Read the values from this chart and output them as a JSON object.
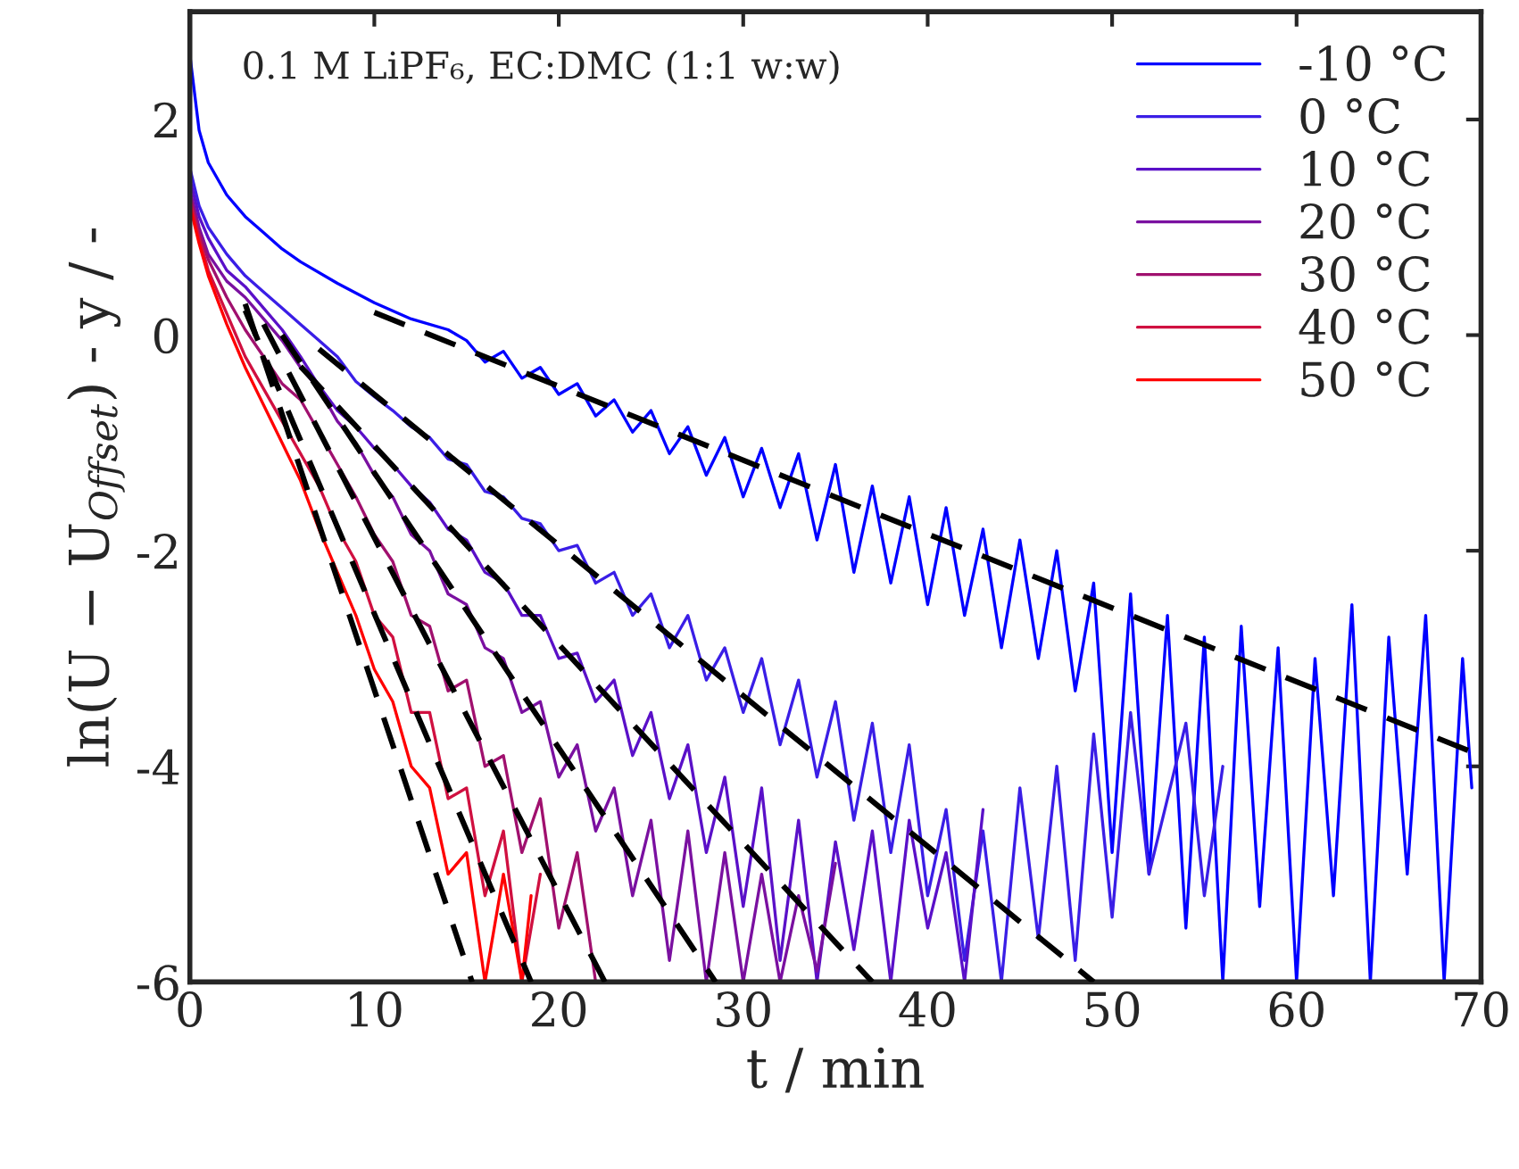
{
  "chart_data": {
    "type": "line",
    "xlabel": "t / min",
    "ylabel": "ln(U − U$_{Offset}$) - y / -",
    "annotations": [
      "0.1 M LiPF₆, EC:DMC (1:1 w:w)"
    ],
    "xlim": [
      0,
      70
    ],
    "ylim": [
      -6,
      3
    ],
    "xticks": [
      0,
      10,
      20,
      30,
      40,
      50,
      60,
      70
    ],
    "yticks": [
      -6,
      -4,
      -2,
      0,
      2
    ],
    "grid": false,
    "legend": "top right",
    "marker": "none",
    "line_style": "solid",
    "series": [
      {
        "name": "-10 °C",
        "color": "#0000ff",
        "x": [
          0,
          0.5,
          1,
          2,
          3,
          4,
          5,
          6,
          8,
          10,
          12,
          14,
          15,
          16,
          17,
          18,
          19,
          20,
          21,
          22,
          23,
          24,
          25,
          26,
          27,
          28,
          29,
          30,
          31,
          32,
          33,
          34,
          35,
          36,
          37,
          38,
          39,
          40,
          41,
          42,
          43,
          44,
          45,
          46,
          47,
          48,
          49,
          50,
          51,
          52,
          53,
          54,
          55,
          56,
          57,
          58,
          59,
          60,
          61,
          62,
          63,
          64,
          65,
          66,
          67,
          68,
          69,
          69.5
        ],
        "values": [
          2.6,
          1.9,
          1.6,
          1.3,
          1.1,
          0.95,
          0.8,
          0.68,
          0.48,
          0.3,
          0.15,
          0.05,
          -0.05,
          -0.25,
          -0.15,
          -0.4,
          -0.3,
          -0.55,
          -0.45,
          -0.75,
          -0.6,
          -0.9,
          -0.7,
          -1.1,
          -0.85,
          -1.3,
          -0.95,
          -1.5,
          -1.05,
          -1.6,
          -1.1,
          -1.9,
          -1.2,
          -2.2,
          -1.4,
          -2.3,
          -1.5,
          -2.5,
          -1.6,
          -2.6,
          -1.8,
          -2.9,
          -1.9,
          -3.0,
          -2.0,
          -3.3,
          -2.3,
          -4.8,
          -2.4,
          -5.0,
          -2.6,
          -5.5,
          -2.8,
          -6,
          -2.7,
          -5.3,
          -2.9,
          -6,
          -3.0,
          -5.2,
          -2.5,
          -6,
          -2.8,
          -5.0,
          -2.6,
          -6,
          -3.0,
          -4.2
        ]
      },
      {
        "name": "0 °C",
        "color": "#3a1ee6",
        "x": [
          0,
          0.5,
          1,
          2,
          3,
          4,
          5,
          6,
          7,
          8,
          9,
          10,
          11,
          12,
          13,
          14,
          15,
          16,
          17,
          18,
          19,
          20,
          21,
          22,
          23,
          24,
          25,
          26,
          27,
          28,
          29,
          30,
          31,
          32,
          33,
          34,
          35,
          36,
          37,
          38,
          39,
          40,
          41,
          42,
          43,
          44,
          45,
          46,
          47,
          48,
          49,
          50,
          51,
          52,
          53,
          54,
          55,
          56
        ],
        "values": [
          1.55,
          1.2,
          1.0,
          0.75,
          0.55,
          0.4,
          0.25,
          0.1,
          -0.05,
          -0.2,
          -0.43,
          -0.57,
          -0.7,
          -0.85,
          -0.95,
          -1.15,
          -1.2,
          -1.45,
          -1.5,
          -1.7,
          -1.75,
          -2.0,
          -1.95,
          -2.3,
          -2.2,
          -2.6,
          -2.4,
          -2.9,
          -2.6,
          -3.2,
          -2.9,
          -3.5,
          -3.0,
          -3.8,
          -3.2,
          -4.1,
          -3.4,
          -4.5,
          -3.6,
          -4.8,
          -3.8,
          -5.2,
          -4.4,
          -5.8,
          -4.6,
          -6,
          -4.2,
          -5.6,
          -4.0,
          -5.8,
          -3.7,
          -5.4,
          -3.5,
          -5.0,
          -4.3,
          -3.6,
          -5.2,
          -4.0
        ]
      },
      {
        "name": "10 °C",
        "color": "#5a10c8",
        "x": [
          0,
          0.5,
          1,
          2,
          3,
          4,
          5,
          6,
          7,
          8,
          9,
          10,
          11,
          12,
          13,
          14,
          15,
          16,
          17,
          18,
          19,
          20,
          21,
          22,
          23,
          24,
          25,
          26,
          27,
          28,
          29,
          30,
          31,
          32,
          33,
          34,
          35,
          36,
          37,
          38,
          39,
          40,
          41,
          42,
          43
        ],
        "values": [
          1.45,
          1.1,
          0.9,
          0.6,
          0.45,
          0.25,
          0.05,
          -0.2,
          -0.47,
          -0.7,
          -0.85,
          -1.05,
          -1.2,
          -1.4,
          -1.55,
          -1.8,
          -1.9,
          -2.2,
          -2.3,
          -2.6,
          -2.6,
          -3.0,
          -2.95,
          -3.4,
          -3.2,
          -3.9,
          -3.5,
          -4.3,
          -3.8,
          -4.8,
          -4.1,
          -5.3,
          -4.2,
          -5.8,
          -4.5,
          -6,
          -4.7,
          -5.7,
          -4.6,
          -6,
          -4.5,
          -5.5,
          -4.8,
          -6,
          -4.4
        ]
      },
      {
        "name": "20 °C",
        "color": "#7a10a0",
        "x": [
          0,
          0.5,
          1,
          2,
          3,
          4,
          5,
          6,
          7,
          8,
          9,
          10,
          11,
          12,
          13,
          14,
          15,
          16,
          17,
          18,
          19,
          20,
          21,
          22,
          23,
          24,
          25,
          26,
          27,
          28,
          29,
          30,
          31,
          32,
          33,
          34,
          35
        ],
        "values": [
          1.35,
          1.0,
          0.75,
          0.5,
          0.35,
          0.15,
          -0.05,
          -0.3,
          -0.5,
          -0.8,
          -1.0,
          -1.3,
          -1.5,
          -1.85,
          -2.0,
          -2.4,
          -2.5,
          -2.9,
          -3.0,
          -3.5,
          -3.4,
          -4.1,
          -3.8,
          -4.6,
          -4.2,
          -5.2,
          -4.5,
          -5.8,
          -4.6,
          -6,
          -4.8,
          -6,
          -5.0,
          -6,
          -5.2,
          -5.9,
          -4.9
        ]
      },
      {
        "name": "30 °C",
        "color": "#a0106e",
        "x": [
          0,
          0.5,
          1,
          2,
          3,
          4,
          5,
          6,
          7,
          8,
          9,
          10,
          11,
          12,
          13,
          14,
          15,
          16,
          17,
          18,
          19,
          20,
          21,
          22
        ],
        "values": [
          1.3,
          0.95,
          0.7,
          0.35,
          0.05,
          -0.2,
          -0.45,
          -0.6,
          -0.9,
          -1.2,
          -1.5,
          -1.85,
          -2.1,
          -2.6,
          -2.7,
          -3.3,
          -3.2,
          -4.0,
          -3.9,
          -4.8,
          -4.3,
          -5.5,
          -4.8,
          -6
        ]
      },
      {
        "name": "40 °C",
        "color": "#d01040",
        "x": [
          0,
          0.5,
          1,
          2,
          3,
          4,
          5,
          6,
          7,
          8,
          9,
          10,
          11,
          12,
          13,
          14,
          15,
          16,
          17,
          18,
          19
        ],
        "values": [
          1.25,
          0.9,
          0.6,
          0.2,
          -0.2,
          -0.5,
          -0.8,
          -1.1,
          -1.4,
          -1.8,
          -2.1,
          -2.6,
          -2.8,
          -3.5,
          -3.5,
          -4.3,
          -4.2,
          -5.2,
          -4.6,
          -6,
          -5.0
        ]
      },
      {
        "name": "50 °C",
        "color": "#ff0000",
        "x": [
          0,
          0.5,
          1,
          2,
          3,
          4,
          5,
          6,
          7,
          8,
          9,
          10,
          11,
          12,
          13,
          14,
          15,
          16,
          17,
          18,
          18.5
        ],
        "values": [
          1.2,
          0.85,
          0.55,
          0.1,
          -0.3,
          -0.65,
          -1.0,
          -1.35,
          -1.8,
          -2.2,
          -2.6,
          -3.1,
          -3.4,
          -4.0,
          -4.2,
          -5.0,
          -4.8,
          -6,
          -5.0,
          -6,
          -5.2
        ]
      },
      {
        "type": "line",
        "color": "#000000",
        "line_style": "dashed",
        "x": [
          10,
          70
        ],
        "values": [
          0.21,
          -3.9
        ]
      },
      {
        "type": "line",
        "color": "#000000",
        "line_style": "dashed",
        "x": [
          7,
          49
        ],
        "values": [
          -0.13,
          -6
        ]
      },
      {
        "type": "line",
        "color": "#000000",
        "line_style": "dashed",
        "x": [
          6,
          37
        ],
        "values": [
          -0.29,
          -6
        ]
      },
      {
        "type": "line",
        "color": "#000000",
        "line_style": "dashed",
        "x": [
          5,
          28.5
        ],
        "values": [
          0.0,
          -6
        ]
      },
      {
        "type": "line",
        "color": "#000000",
        "line_style": "dashed",
        "x": [
          4,
          22.5
        ],
        "values": [
          0.1,
          -6
        ]
      },
      {
        "type": "line",
        "color": "#000000",
        "line_style": "dashed",
        "x": [
          3,
          18.5
        ],
        "values": [
          0.23,
          -6
        ]
      },
      {
        "type": "line",
        "color": "#000000",
        "line_style": "dashed",
        "x": [
          3,
          15.3
        ],
        "values": [
          0.29,
          -6
        ]
      }
    ]
  }
}
